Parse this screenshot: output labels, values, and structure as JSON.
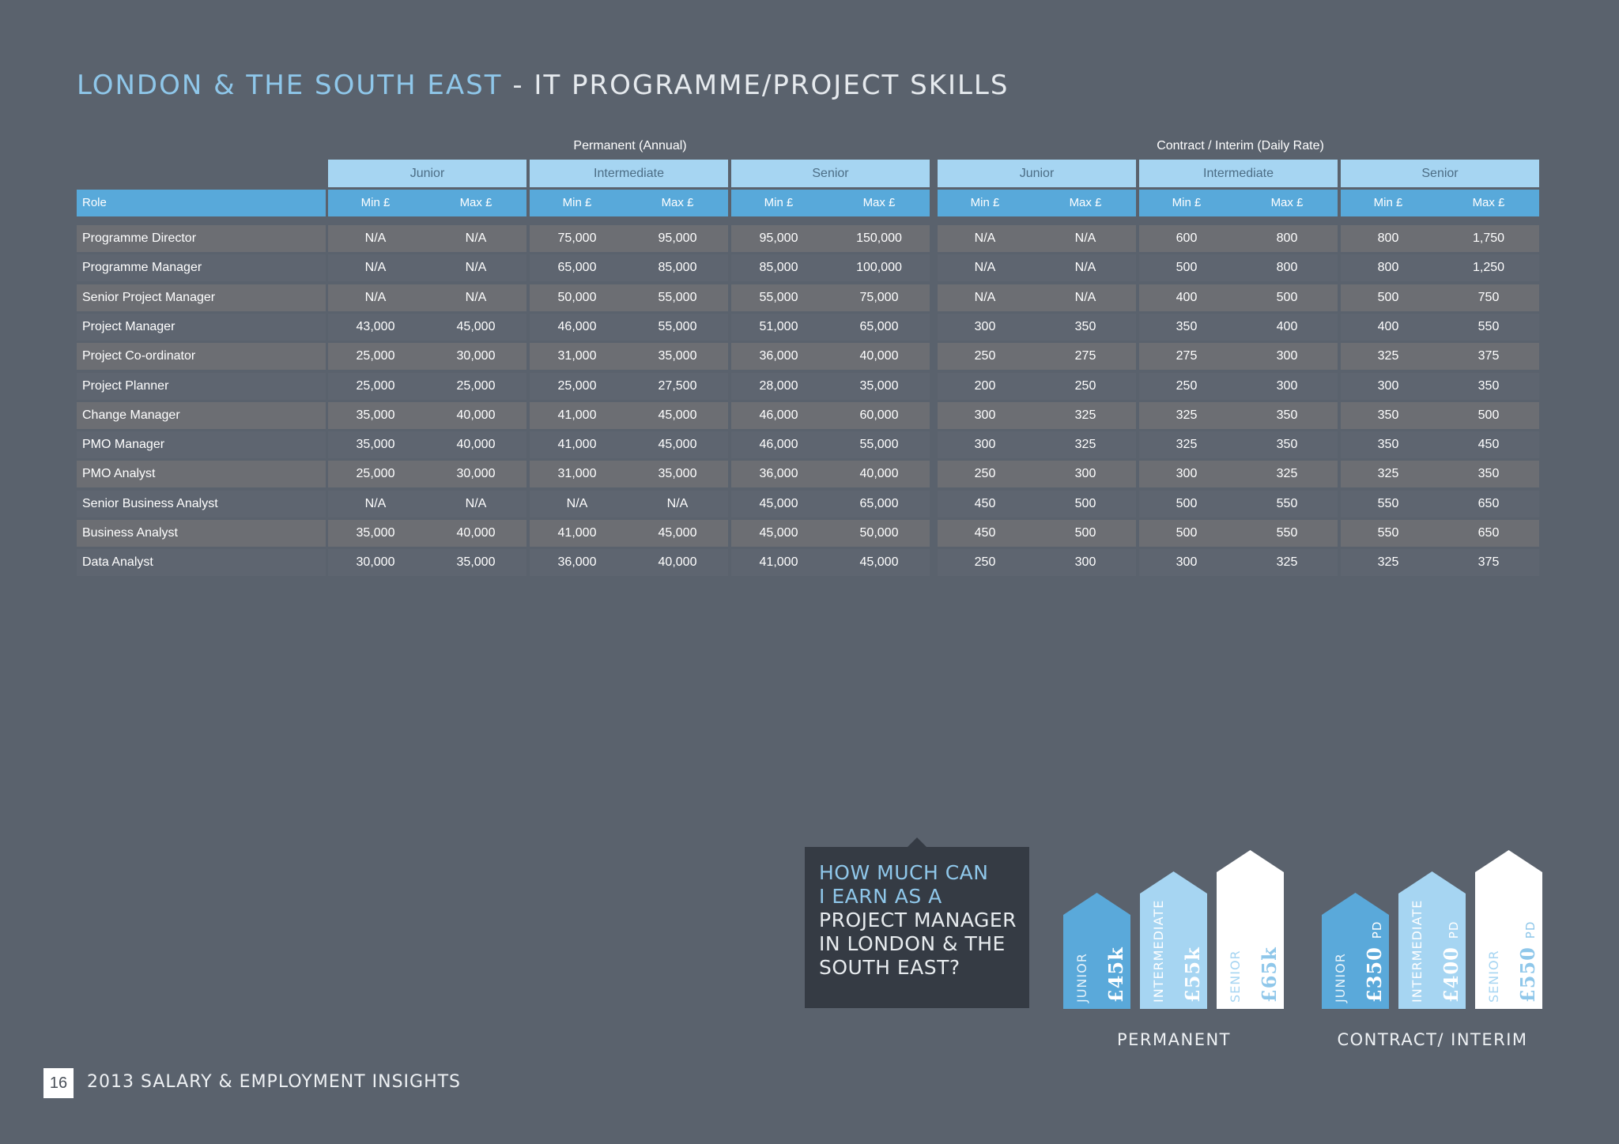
{
  "title": {
    "region": "LONDON & THE SOUTH EAST",
    "separator": " - ",
    "subject": "IT PROGRAMME/PROJECT SKILLS"
  },
  "table": {
    "groups": [
      "Permanent (Annual)",
      "Contract / Interim (Daily Rate)"
    ],
    "levels": [
      "Junior",
      "Intermediate",
      "Senior",
      "Junior",
      "Intermediate",
      "Senior"
    ],
    "role_header": "Role",
    "min_label": "Min £",
    "max_label": "Max £",
    "rows": [
      {
        "role": "Programme Director",
        "values": [
          "N/A",
          "N/A",
          "75,000",
          "95,000",
          "95,000",
          "150,000",
          "N/A",
          "N/A",
          "600",
          "800",
          "800",
          "1,750"
        ]
      },
      {
        "role": "Programme Manager",
        "values": [
          "N/A",
          "N/A",
          "65,000",
          "85,000",
          "85,000",
          "100,000",
          "N/A",
          "N/A",
          "500",
          "800",
          "800",
          "1,250"
        ]
      },
      {
        "role": "Senior Project Manager",
        "values": [
          "N/A",
          "N/A",
          "50,000",
          "55,000",
          "55,000",
          "75,000",
          "N/A",
          "N/A",
          "400",
          "500",
          "500",
          "750"
        ]
      },
      {
        "role": "Project Manager",
        "values": [
          "43,000",
          "45,000",
          "46,000",
          "55,000",
          "51,000",
          "65,000",
          "300",
          "350",
          "350",
          "400",
          "400",
          "550"
        ]
      },
      {
        "role": "Project Co-ordinator",
        "values": [
          "25,000",
          "30,000",
          "31,000",
          "35,000",
          "36,000",
          "40,000",
          "250",
          "275",
          "275",
          "300",
          "325",
          "375"
        ]
      },
      {
        "role": "Project Planner",
        "values": [
          "25,000",
          "25,000",
          "25,000",
          "27,500",
          "28,000",
          "35,000",
          "200",
          "250",
          "250",
          "300",
          "300",
          "350"
        ]
      },
      {
        "role": "Change Manager",
        "values": [
          "35,000",
          "40,000",
          "41,000",
          "45,000",
          "46,000",
          "60,000",
          "300",
          "325",
          "325",
          "350",
          "350",
          "500"
        ]
      },
      {
        "role": "PMO Manager",
        "values": [
          "35,000",
          "40,000",
          "41,000",
          "45,000",
          "46,000",
          "55,000",
          "300",
          "325",
          "325",
          "350",
          "350",
          "450"
        ]
      },
      {
        "role": "PMO Analyst",
        "values": [
          "25,000",
          "30,000",
          "31,000",
          "35,000",
          "36,000",
          "40,000",
          "250",
          "300",
          "300",
          "325",
          "325",
          "350"
        ]
      },
      {
        "role": "Senior Business Analyst",
        "values": [
          "N/A",
          "N/A",
          "N/A",
          "N/A",
          "45,000",
          "65,000",
          "450",
          "500",
          "500",
          "550",
          "550",
          "650"
        ]
      },
      {
        "role": "Business Analyst",
        "values": [
          "35,000",
          "40,000",
          "41,000",
          "45,000",
          "45,000",
          "50,000",
          "450",
          "500",
          "500",
          "550",
          "550",
          "650"
        ]
      },
      {
        "role": "Data Analyst",
        "values": [
          "30,000",
          "35,000",
          "36,000",
          "40,000",
          "41,000",
          "45,000",
          "250",
          "300",
          "300",
          "325",
          "325",
          "375"
        ]
      }
    ]
  },
  "callout": {
    "line1": "HOW MUCH CAN",
    "line2": "I EARN AS A",
    "line3": "PROJECT MANAGER",
    "line4": "IN LONDON & THE",
    "line5": "SOUTH EAST?"
  },
  "infographic": {
    "permanent": {
      "caption": "PERMANENT",
      "houses": [
        {
          "level": "JUNIOR",
          "amount": "£45k",
          "unit": ""
        },
        {
          "level": "INTERMEDIATE",
          "amount": "£55k",
          "unit": ""
        },
        {
          "level": "SENIOR",
          "amount": "£65k",
          "unit": ""
        }
      ]
    },
    "contract": {
      "caption": "CONTRACT/ INTERIM",
      "houses": [
        {
          "level": "JUNIOR",
          "amount": "£350",
          "unit": "PD"
        },
        {
          "level": "INTERMEDIATE",
          "amount": "£400",
          "unit": "PD"
        },
        {
          "level": "SENIOR",
          "amount": "£550",
          "unit": "PD"
        }
      ]
    }
  },
  "colors": {
    "house_dark": "#5aa9da",
    "house_mid": "#a6d5f2",
    "house_light": "#ffffff"
  },
  "footer": {
    "page_number": "16",
    "text": "2013 SALARY & EMPLOYMENT INSIGHTS"
  }
}
